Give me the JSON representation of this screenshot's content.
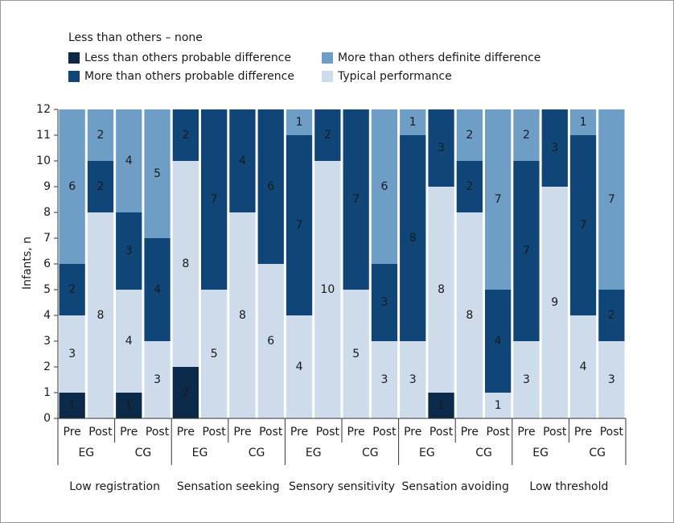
{
  "chart_data": {
    "type": "stacked_bar",
    "legend_header": "Less than others – none",
    "ylabel": "Infants, n",
    "categories": [
      "Pre",
      "Post",
      "Pre",
      "Post",
      "Pre",
      "Post",
      "Pre",
      "Post",
      "Pre",
      "Post",
      "Pre",
      "Post",
      "Pre",
      "Post",
      "Pre",
      "Post",
      "Pre",
      "Post",
      "Pre",
      "Post"
    ],
    "subgroups": [
      "EG",
      "CG",
      "EG",
      "CG",
      "EG",
      "CG",
      "EG",
      "CG",
      "EG",
      "CG"
    ],
    "groups": [
      "Low registration",
      "Sensation seeking",
      "Sensory sensitivity",
      "Sensation avoiding",
      "Low threshold"
    ],
    "series": [
      {
        "name": "Less than others probable difference",
        "color": "#0b2a4a",
        "values": [
          1,
          0,
          1,
          0,
          2,
          0,
          0,
          0,
          0,
          0,
          0,
          0,
          0,
          1,
          0,
          0,
          0,
          0,
          0,
          0
        ]
      },
      {
        "name": "Typical performance",
        "color": "#cddbea",
        "values": [
          3,
          8,
          4,
          3,
          8,
          5,
          8,
          6,
          4,
          10,
          5,
          3,
          3,
          8,
          8,
          1,
          3,
          9,
          4,
          3
        ]
      },
      {
        "name": "More than others probable difference",
        "color": "#0f4677",
        "values": [
          2,
          2,
          3,
          4,
          2,
          7,
          4,
          6,
          7,
          2,
          7,
          3,
          8,
          3,
          2,
          4,
          7,
          3,
          7,
          2
        ]
      },
      {
        "name": "More than others definite difference",
        "color": "#6e9dc6",
        "values": [
          6,
          2,
          4,
          5,
          0,
          0,
          0,
          0,
          1,
          0,
          0,
          6,
          1,
          0,
          2,
          7,
          2,
          0,
          1,
          7
        ]
      }
    ],
    "ylim": [
      0,
      12
    ],
    "yticks": [
      0,
      1,
      2,
      3,
      4,
      5,
      6,
      7,
      8,
      9,
      10,
      11,
      12
    ]
  }
}
